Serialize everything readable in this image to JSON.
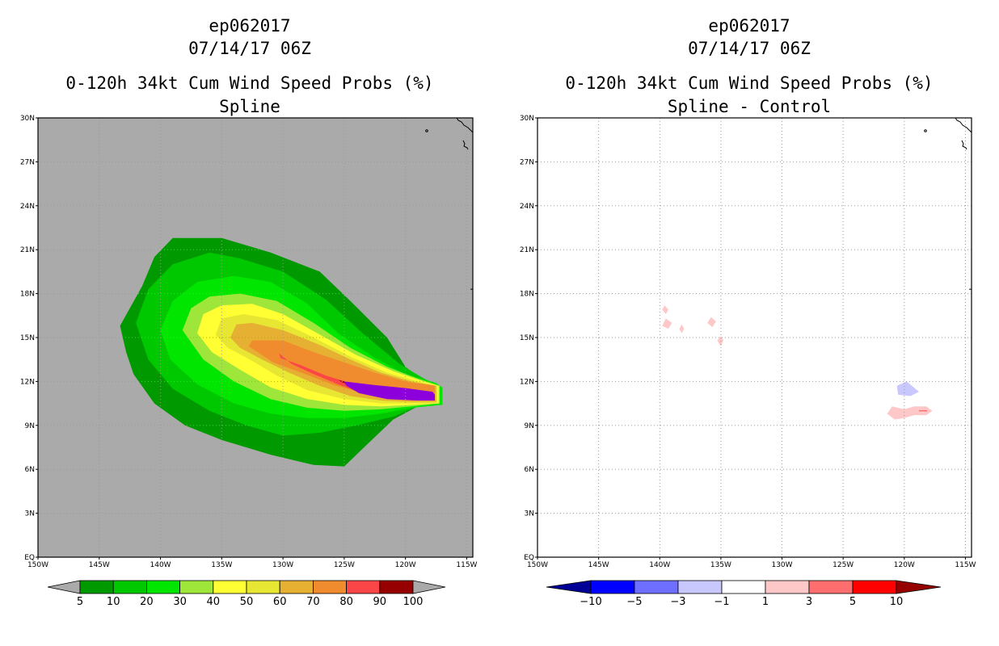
{
  "chart_data": [
    {
      "type": "heatmap",
      "storm_id": "ep062017",
      "datetime": "07/14/17 06Z",
      "title": "0-120h 34kt Cum Wind Speed Probs (%)",
      "subtitle": "Spline",
      "x_ticks": [
        "150W",
        "145W",
        "140W",
        "135W",
        "130W",
        "125W",
        "120W",
        "115W"
      ],
      "y_ticks": [
        "EQ",
        "3N",
        "6N",
        "9N",
        "12N",
        "15N",
        "18N",
        "21N",
        "24N",
        "27N",
        "30N"
      ],
      "xlim_deg_west": [
        150,
        114.5
      ],
      "ylim_deg_north": [
        0,
        30
      ],
      "grid": true,
      "levels": [
        5,
        10,
        20,
        30,
        40,
        50,
        60,
        70,
        80,
        90,
        100
      ],
      "level_colors": [
        "#009a00",
        "#00c800",
        "#00e600",
        "#9fe63a",
        "#ffff33",
        "#e6e633",
        "#e6b033",
        "#f08c2d",
        "#fa4646",
        "#960000",
        "#8c00dc"
      ],
      "level_labels": [
        "5",
        "10",
        "20",
        "30",
        "40",
        "50",
        "60",
        "70",
        "80",
        "90",
        "100"
      ],
      "probability_contours": [
        {
          "level": 5,
          "polygon_lonlat": [
            [
              -143.3,
              15.8
            ],
            [
              -141.5,
              18.5
            ],
            [
              -140.5,
              20.5
            ],
            [
              -139,
              21.8
            ],
            [
              -135,
              21.8
            ],
            [
              -131,
              20.8
            ],
            [
              -127,
              19.5
            ],
            [
              -124.5,
              17.5
            ],
            [
              -121.5,
              15
            ],
            [
              -120,
              13
            ],
            [
              -118.5,
              12
            ],
            [
              -117,
              11.5
            ],
            [
              -117,
              10.5
            ],
            [
              -119,
              10.3
            ],
            [
              -121,
              9.4
            ],
            [
              -123.5,
              7.4
            ],
            [
              -125,
              6.2
            ],
            [
              -127.5,
              6.3
            ],
            [
              -131,
              7
            ],
            [
              -135,
              8
            ],
            [
              -138,
              9
            ],
            [
              -140.5,
              10.5
            ],
            [
              -142.2,
              12.5
            ],
            [
              -142.8,
              14
            ]
          ]
        },
        {
          "level": 10,
          "polygon_lonlat": [
            [
              -142,
              16
            ],
            [
              -141,
              18.3
            ],
            [
              -139,
              20
            ],
            [
              -136,
              20.8
            ],
            [
              -133.5,
              20.4
            ],
            [
              -130,
              19.5
            ],
            [
              -126.5,
              17.6
            ],
            [
              -123.5,
              15.3
            ],
            [
              -120.5,
              13.2
            ],
            [
              -118.5,
              12.2
            ],
            [
              -117,
              11.6
            ],
            [
              -117,
              10.5
            ],
            [
              -119,
              10.3
            ],
            [
              -121,
              9.6
            ],
            [
              -124,
              9
            ],
            [
              -127,
              8.5
            ],
            [
              -130,
              8.3
            ],
            [
              -133,
              9
            ],
            [
              -136,
              10
            ],
            [
              -139,
              11.5
            ],
            [
              -141,
              13.5
            ]
          ]
        },
        {
          "level": 20,
          "polygon_lonlat": [
            [
              -140,
              15.5
            ],
            [
              -139,
              17.5
            ],
            [
              -137,
              18.8
            ],
            [
              -134,
              19.2
            ],
            [
              -131,
              18.8
            ],
            [
              -128,
              17.3
            ],
            [
              -125.5,
              15.3
            ],
            [
              -122.5,
              13.6
            ],
            [
              -120,
              12.5
            ],
            [
              -117.5,
              11.9
            ],
            [
              -117,
              11.6
            ],
            [
              -117,
              10.4
            ],
            [
              -119.5,
              10.2
            ],
            [
              -122,
              9.8
            ],
            [
              -125,
              9.5
            ],
            [
              -128,
              9.5
            ],
            [
              -131,
              9.8
            ],
            [
              -134,
              10.5
            ],
            [
              -137,
              11.8
            ],
            [
              -139.2,
              13.5
            ]
          ]
        },
        {
          "level": 30,
          "polygon_lonlat": [
            [
              -138.2,
              15.5
            ],
            [
              -137.5,
              17
            ],
            [
              -136,
              17.8
            ],
            [
              -133.5,
              18
            ],
            [
              -130.5,
              17.5
            ],
            [
              -127.5,
              16
            ],
            [
              -124.5,
              14.3
            ],
            [
              -121.5,
              13
            ],
            [
              -119,
              12.2
            ],
            [
              -117.2,
              11.7
            ],
            [
              -117.2,
              10.5
            ],
            [
              -119.5,
              10.3
            ],
            [
              -122,
              10.1
            ],
            [
              -125,
              10
            ],
            [
              -128,
              10.2
            ],
            [
              -131,
              10.8
            ],
            [
              -134,
              12
            ],
            [
              -136.5,
              13.5
            ]
          ]
        },
        {
          "level": 40,
          "polygon_lonlat": [
            [
              -137,
              15.3
            ],
            [
              -136.5,
              16.6
            ],
            [
              -135,
              17.2
            ],
            [
              -132.5,
              17.3
            ],
            [
              -130,
              16.6
            ],
            [
              -127,
              15.2
            ],
            [
              -124,
              13.8
            ],
            [
              -121,
              12.7
            ],
            [
              -118.5,
              12
            ],
            [
              -117.3,
              11.7
            ],
            [
              -117.3,
              10.5
            ],
            [
              -119.5,
              10.4
            ],
            [
              -122,
              10.3
            ],
            [
              -125,
              10.4
            ],
            [
              -128,
              10.8
            ],
            [
              -131,
              11.6
            ],
            [
              -133.5,
              12.8
            ],
            [
              -135.8,
              14
            ]
          ]
        },
        {
          "level": 50,
          "polygon_lonlat": [
            [
              -135.5,
              15.2
            ],
            [
              -135,
              16.3
            ],
            [
              -133.2,
              16.6
            ],
            [
              -130.5,
              16.2
            ],
            [
              -127.5,
              15
            ],
            [
              -124.5,
              13.7
            ],
            [
              -121.5,
              12.6
            ],
            [
              -119,
              12
            ],
            [
              -117.4,
              11.7
            ],
            [
              -117.4,
              10.5
            ],
            [
              -119.5,
              10.5
            ],
            [
              -122,
              10.5
            ],
            [
              -125,
              10.8
            ],
            [
              -128,
              11.4
            ],
            [
              -130.5,
              12.4
            ],
            [
              -132.7,
              13.5
            ],
            [
              -134.5,
              14.3
            ]
          ]
        },
        {
          "level": 60,
          "polygon_lonlat": [
            [
              -134.3,
              15
            ],
            [
              -133.8,
              15.9
            ],
            [
              -132.5,
              16
            ],
            [
              -130,
              15.5
            ],
            [
              -127,
              14.5
            ],
            [
              -124.5,
              13.5
            ],
            [
              -122,
              12.6
            ],
            [
              -119.5,
              12
            ],
            [
              -117.5,
              11.7
            ],
            [
              -117.5,
              10.6
            ],
            [
              -119.5,
              10.6
            ],
            [
              -122,
              10.7
            ],
            [
              -124.5,
              11
            ],
            [
              -127,
              11.7
            ],
            [
              -129.5,
              12.6
            ],
            [
              -131.7,
              13.5
            ],
            [
              -133.5,
              14.3
            ]
          ]
        },
        {
          "level": 70,
          "polygon_lonlat": [
            [
              -132.8,
              14.4
            ],
            [
              -132.5,
              14.8
            ],
            [
              -130,
              14.8
            ],
            [
              -127.5,
              14
            ],
            [
              -125,
              13.3
            ],
            [
              -122.5,
              12.6
            ],
            [
              -120,
              12
            ],
            [
              -117.6,
              11.7
            ],
            [
              -117.6,
              10.7
            ],
            [
              -119.5,
              10.7
            ],
            [
              -121.5,
              10.8
            ],
            [
              -123.5,
              11.2
            ],
            [
              -126,
              11.8
            ],
            [
              -128.5,
              12.6
            ],
            [
              -130.8,
              13.3
            ]
          ]
        },
        {
          "level": 80,
          "polygon_lonlat": [
            [
              -130.3,
              13.9
            ],
            [
              -130.2,
              13.6
            ],
            [
              -128.5,
              13.1
            ],
            [
              -126.5,
              12.4
            ],
            [
              -124.5,
              11.9
            ],
            [
              -122.5,
              11.5
            ],
            [
              -120.5,
              11.2
            ],
            [
              -118.5,
              11
            ],
            [
              -117.7,
              10.9
            ],
            [
              -117.7,
              10.8
            ],
            [
              -119.5,
              10.8
            ],
            [
              -121.5,
              11
            ],
            [
              -123.5,
              11.2
            ],
            [
              -125.5,
              11.8
            ],
            [
              -127.5,
              12.5
            ],
            [
              -129.3,
              13.2
            ]
          ]
        },
        {
          "level": 90,
          "polygon_lonlat": [
            [
              -125.5,
              12.1
            ],
            [
              -124.5,
              11.9
            ],
            [
              -122.5,
              11.6
            ],
            [
              -120.5,
              11.4
            ],
            [
              -118,
              11.2
            ],
            [
              -117.8,
              11.1
            ],
            [
              -117.8,
              10.9
            ],
            [
              -119.5,
              10.9
            ],
            [
              -121.5,
              10.9
            ],
            [
              -123.5,
              11.2
            ]
          ]
        },
        {
          "level": 100,
          "polygon_lonlat": [
            [
              -125,
              12
            ],
            [
              -122.5,
              11.75
            ],
            [
              -120,
              11.55
            ],
            [
              -117.8,
              11.3
            ],
            [
              -117.6,
              11.1
            ],
            [
              -117.6,
              10.7
            ],
            [
              -119,
              10.7
            ],
            [
              -121.5,
              10.8
            ],
            [
              -123.8,
              11.2
            ],
            [
              -124.8,
              11.7
            ]
          ]
        }
      ]
    },
    {
      "type": "heatmap",
      "storm_id": "ep062017",
      "datetime": "07/14/17 06Z",
      "title": "0-120h 34kt Cum Wind Speed Probs (%)",
      "subtitle": "Spline - Control",
      "x_ticks": [
        "150W",
        "145W",
        "140W",
        "135W",
        "130W",
        "125W",
        "120W",
        "115W"
      ],
      "y_ticks": [
        "EQ",
        "3N",
        "6N",
        "9N",
        "12N",
        "15N",
        "18N",
        "21N",
        "24N",
        "27N",
        "30N"
      ],
      "xlim_deg_west": [
        150,
        114.5
      ],
      "ylim_deg_north": [
        0,
        30
      ],
      "grid": true,
      "levels": [
        -10,
        -5,
        -3,
        -1,
        1,
        3,
        5,
        10
      ],
      "level_colors": [
        "#000096",
        "#0000ff",
        "#6e6eff",
        "#c8c8ff",
        "#ffffff",
        "#ffc8c8",
        "#ff6e6e",
        "#ff0000",
        "#960000"
      ],
      "level_labels": [
        "-10",
        "-5",
        "-3",
        "-1",
        "1",
        "3",
        "5",
        "10"
      ],
      "difference_areas": [
        {
          "value_range": "1 to 3",
          "polygon_lonlat": [
            [
              -139.6,
              17.2
            ],
            [
              -139.3,
              16.9
            ],
            [
              -139.5,
              16.6
            ],
            [
              -139.8,
              16.9
            ]
          ]
        },
        {
          "value_range": "1 to 3",
          "polygon_lonlat": [
            [
              -139.5,
              16.3
            ],
            [
              -139,
              16
            ],
            [
              -139.3,
              15.6
            ],
            [
              -139.8,
              15.8
            ]
          ]
        },
        {
          "value_range": "1 to 3",
          "polygon_lonlat": [
            [
              -138.2,
              15.9
            ],
            [
              -138,
              15.6
            ],
            [
              -138.2,
              15.3
            ],
            [
              -138.4,
              15.6
            ]
          ]
        },
        {
          "value_range": "1 to 3",
          "polygon_lonlat": [
            [
              -135.8,
              16.4
            ],
            [
              -135.4,
              16.1
            ],
            [
              -135.7,
              15.7
            ],
            [
              -136.1,
              16
            ]
          ]
        },
        {
          "value_range": "1 to 3",
          "polygon_lonlat": [
            [
              -135,
              15.1
            ],
            [
              -134.8,
              14.8
            ],
            [
              -135,
              14.4
            ],
            [
              -135.3,
              14.8
            ]
          ]
        },
        {
          "value_range": "1 to 3",
          "polygon_lonlat": [
            [
              -120,
              10.1
            ],
            [
              -119.2,
              10.3
            ],
            [
              -118.2,
              10.3
            ],
            [
              -117.7,
              10
            ],
            [
              -118.2,
              9.7
            ],
            [
              -119.2,
              9.7
            ],
            [
              -120,
              9.5
            ],
            [
              -120.8,
              9.4
            ],
            [
              -121.4,
              9.8
            ],
            [
              -121,
              10.3
            ]
          ]
        },
        {
          "value_range": "-3 to -1",
          "polygon_lonlat": [
            [
              -120.6,
              11.7
            ],
            [
              -119.8,
              12
            ],
            [
              -118.8,
              11.3
            ],
            [
              -119.5,
              11
            ],
            [
              -120.5,
              11.1
            ]
          ]
        }
      ]
    }
  ]
}
